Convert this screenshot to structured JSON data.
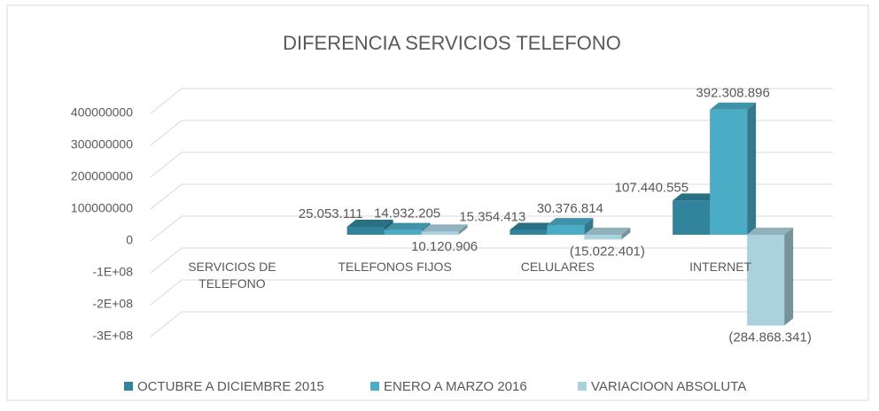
{
  "chart_data": {
    "type": "bar3d",
    "title": "DIFERENCIA SERVICIOS TELEFONO",
    "categories": [
      "SERVICIOS DE TELEFONO",
      "TELEFONOS FIJOS",
      "CELULARES",
      "INTERNET"
    ],
    "series": [
      {
        "name": "OCTUBRE A DICIEMBRE 2015",
        "color": "#31849b",
        "values": [
          null,
          25053111,
          15354413,
          107440555
        ],
        "value_labels": [
          null,
          "25.053.111",
          "15.354.413",
          "107.440.555"
        ]
      },
      {
        "name": "ENERO A MARZO 2016",
        "color": "#4bacc6",
        "values": [
          null,
          14932205,
          30376814,
          392308896
        ],
        "value_labels": [
          null,
          "14.932.205",
          "30.376.814",
          "392.308.896"
        ]
      },
      {
        "name": "VARIACIOON ABSOLUTA",
        "color": "#a9d1de",
        "values": [
          null,
          10120906,
          -15022401,
          -284868341
        ],
        "value_labels": [
          null,
          "10.120.906",
          "(15.022.401)",
          "(284.868.341)"
        ]
      }
    ],
    "ylim": [
      -300000000,
      400000000
    ],
    "yticks": [
      400000000,
      300000000,
      200000000,
      100000000,
      0,
      {
        "value": -100000000,
        "label": "-1E+08"
      },
      {
        "value": -200000000,
        "label": "-2E+08"
      },
      {
        "value": -300000000,
        "label": "-3E+08"
      }
    ],
    "grid": true,
    "legend": "bottom"
  }
}
